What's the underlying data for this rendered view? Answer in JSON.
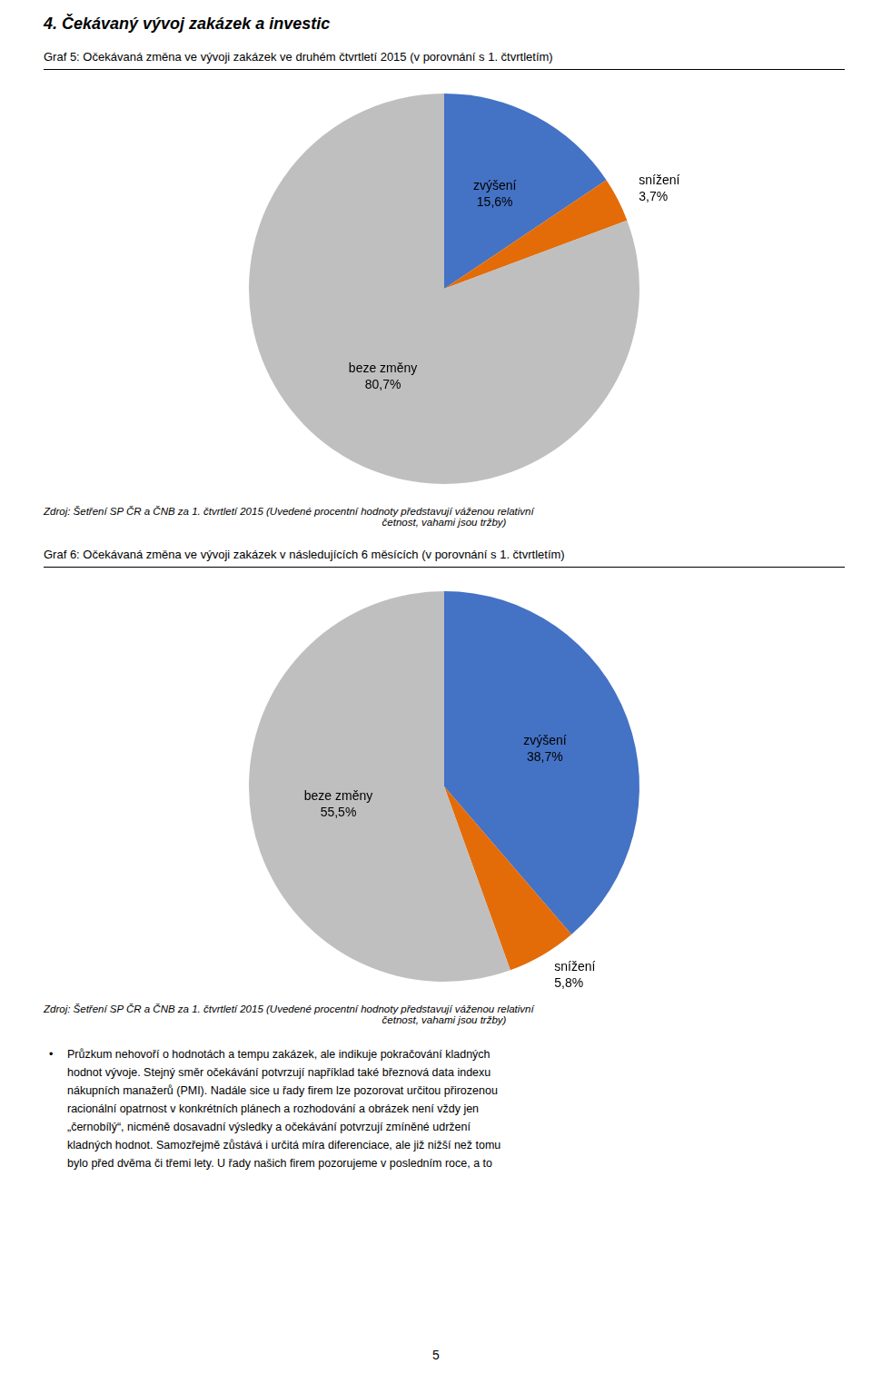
{
  "title": "4.  Čekávaný vývoj zakázek a investic",
  "chart_data": [
    {
      "type": "pie",
      "title": "Graf 5: Očekávaná změna ve vývoji zakázek ve druhém čtvrtletí 2015 (v porovnání s 1. čtvrtletím)",
      "categories": [
        "zvýšení",
        "snížení",
        "beze změny"
      ],
      "values": [
        15.6,
        3.7,
        80.7
      ],
      "value_labels": [
        "15,6%",
        "3,7%",
        "80,7%"
      ],
      "colors": [
        "#4472C4",
        "#E36C09",
        "#BFBFBF"
      ],
      "data_labels": true,
      "annotations": [
        "Zdroj: Šetření SP ČR a ČNB za 1. čtvrtletí 2015 (Uvedené procentní hodnoty představují váženou relativní",
        "četnost, vahami jsou tržby)"
      ]
    },
    {
      "type": "pie",
      "title": "Graf 6: Očekávaná změna ve vývoji zakázek v následujících 6 měsících (v porovnání s 1. čtvrtletím)",
      "categories": [
        "zvýšení",
        "snížení",
        "beze změny"
      ],
      "values": [
        38.7,
        5.8,
        55.5
      ],
      "value_labels": [
        "38,7%",
        "5,8%",
        "55,5%"
      ],
      "colors": [
        "#4472C4",
        "#E36C09",
        "#BFBFBF"
      ],
      "data_labels": true,
      "annotations": [
        "Zdroj: Šetření SP ČR a ČNB za 1. čtvrtletí 2015 (Uvedené procentní hodnoty představují váženou relativní",
        "četnost, vahami jsou tržby)"
      ]
    }
  ],
  "annotations": [
    "Průzkum nehovoří o hodnotách a tempu zakázek, ale indikuje pokračování kladných",
    "hodnot vývoje. Stejný směr očekávání potvrzují například také březnová data indexu",
    "nákupních manažerů (PMI). Nadále sice u řady firem lze pozorovat určitou přirozenou",
    "racionální opatrnost v konkrétních plánech a rozhodování a obrázek není vždy jen",
    "„černobílý“, nicméně dosavadní výsledky a očekávání potvrzují zmíněné udržení",
    "kladných hodnot. Samozřejmě zůstává i určitá míra diferenciace, ale již nižší než tomu",
    "bylo před dvěma či třemi lety. U řady našich firem pozorujeme v posledním roce, a to"
  ],
  "page_number": "5"
}
